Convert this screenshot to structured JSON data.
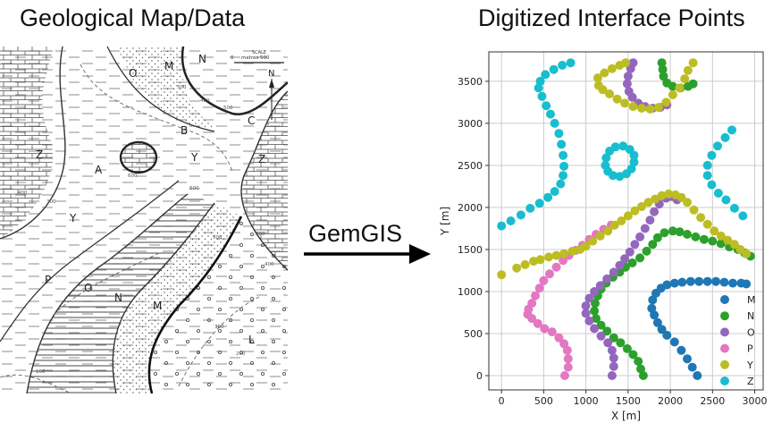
{
  "left_title": "Geological Map/Data",
  "right_title": "Digitized Interface Points",
  "arrow_label": "GemGIS",
  "map": {
    "scale_label_top": "SCALE",
    "scale_label_bottom": "metres 500",
    "scale_zero": "0",
    "north": "N",
    "unit_labels": [
      "M",
      "N",
      "O",
      "Y",
      "Z",
      "Z",
      "A",
      "B",
      "C",
      "Y",
      "P",
      "O",
      "N",
      "M",
      "L"
    ],
    "contour_labels": [
      "300",
      "400",
      "500",
      "600",
      "400",
      "300",
      "200",
      "600",
      "500",
      "400",
      "300",
      "200",
      "100"
    ]
  },
  "chart_data": {
    "type": "scatter",
    "title": "Digitized Interface Points",
    "xlabel": "X [m]",
    "ylabel": "Y [m]",
    "xlim": [
      -150,
      3100
    ],
    "ylim": [
      -170,
      3850
    ],
    "xticks": [
      0,
      500,
      1000,
      1500,
      2000,
      2500,
      3000
    ],
    "yticks": [
      0,
      500,
      1000,
      1500,
      2000,
      2500,
      3000,
      3500
    ],
    "grid": true,
    "legend_position": "bottom-right",
    "series": [
      {
        "name": "M",
        "color": "#1f77b4",
        "points": [
          [
            2320,
            0
          ],
          [
            2260,
            100
          ],
          [
            2200,
            200
          ],
          [
            2130,
            300
          ],
          [
            2050,
            400
          ],
          [
            1960,
            480
          ],
          [
            1900,
            550
          ],
          [
            1850,
            630
          ],
          [
            1810,
            720
          ],
          [
            1780,
            800
          ],
          [
            1790,
            900
          ],
          [
            1830,
            980
          ],
          [
            1890,
            1040
          ],
          [
            1960,
            1080
          ],
          [
            2050,
            1100
          ],
          [
            2140,
            1110
          ],
          [
            2240,
            1120
          ],
          [
            2340,
            1120
          ],
          [
            2440,
            1120
          ],
          [
            2540,
            1120
          ],
          [
            2640,
            1110
          ],
          [
            2740,
            1100
          ],
          [
            2840,
            1100
          ],
          [
            2900,
            1090
          ]
        ]
      },
      {
        "name": "N",
        "color": "#2ca02c",
        "points": [
          [
            1680,
            0
          ],
          [
            1650,
            80
          ],
          [
            1620,
            170
          ],
          [
            1560,
            250
          ],
          [
            1490,
            320
          ],
          [
            1410,
            390
          ],
          [
            1330,
            450
          ],
          [
            1250,
            530
          ],
          [
            1180,
            600
          ],
          [
            1120,
            680
          ],
          [
            1100,
            770
          ],
          [
            1110,
            860
          ],
          [
            1140,
            950
          ],
          [
            1180,
            1030
          ],
          [
            1240,
            1100
          ],
          [
            1320,
            1170
          ],
          [
            1400,
            1230
          ],
          [
            1470,
            1290
          ],
          [
            1550,
            1340
          ],
          [
            1640,
            1400
          ],
          [
            1720,
            1480
          ],
          [
            1790,
            1560
          ],
          [
            1850,
            1640
          ],
          [
            1930,
            1700
          ],
          [
            2030,
            1720
          ],
          [
            2110,
            1710
          ],
          [
            2200,
            1680
          ],
          [
            2300,
            1650
          ],
          [
            2400,
            1620
          ],
          [
            2500,
            1600
          ],
          [
            2600,
            1570
          ],
          [
            2700,
            1530
          ],
          [
            2800,
            1500
          ],
          [
            2880,
            1460
          ],
          [
            2950,
            1420
          ],
          [
            1900,
            3720
          ],
          [
            1910,
            3640
          ],
          [
            1920,
            3560
          ],
          [
            1960,
            3480
          ],
          [
            2030,
            3440
          ],
          [
            2120,
            3420
          ],
          [
            2210,
            3440
          ],
          [
            2270,
            3470
          ]
        ]
      },
      {
        "name": "O",
        "color": "#9467bd",
        "points": [
          [
            1310,
            0
          ],
          [
            1330,
            110
          ],
          [
            1330,
            210
          ],
          [
            1310,
            300
          ],
          [
            1260,
            390
          ],
          [
            1180,
            470
          ],
          [
            1100,
            560
          ],
          [
            1040,
            650
          ],
          [
            1000,
            740
          ],
          [
            1000,
            830
          ],
          [
            1040,
            920
          ],
          [
            1100,
            1000
          ],
          [
            1170,
            1070
          ],
          [
            1250,
            1150
          ],
          [
            1330,
            1230
          ],
          [
            1400,
            1310
          ],
          [
            1460,
            1390
          ],
          [
            1520,
            1470
          ],
          [
            1580,
            1560
          ],
          [
            1640,
            1650
          ],
          [
            1700,
            1750
          ],
          [
            1760,
            1850
          ],
          [
            1810,
            1950
          ],
          [
            1870,
            2040
          ],
          [
            1950,
            2110
          ],
          [
            2020,
            2130
          ],
          [
            2080,
            2090
          ],
          [
            1560,
            3720
          ],
          [
            1530,
            3650
          ],
          [
            1500,
            3560
          ],
          [
            1490,
            3470
          ],
          [
            1510,
            3380
          ],
          [
            1550,
            3310
          ],
          [
            1620,
            3240
          ],
          [
            1700,
            3200
          ],
          [
            1790,
            3180
          ],
          [
            1880,
            3190
          ],
          [
            1960,
            3220
          ]
        ]
      },
      {
        "name": "P",
        "color": "#e377c2",
        "points": [
          [
            750,
            0
          ],
          [
            790,
            100
          ],
          [
            790,
            200
          ],
          [
            780,
            300
          ],
          [
            740,
            380
          ],
          [
            680,
            450
          ],
          [
            600,
            520
          ],
          [
            510,
            560
          ],
          [
            430,
            620
          ],
          [
            360,
            680
          ],
          [
            310,
            730
          ],
          [
            320,
            790
          ],
          [
            360,
            860
          ],
          [
            400,
            950
          ],
          [
            450,
            1040
          ],
          [
            500,
            1130
          ],
          [
            570,
            1210
          ],
          [
            650,
            1290
          ],
          [
            730,
            1370
          ],
          [
            800,
            1430
          ],
          [
            880,
            1490
          ],
          [
            960,
            1550
          ],
          [
            1040,
            1620
          ],
          [
            1120,
            1680
          ],
          [
            1210,
            1740
          ],
          [
            1300,
            1790
          ]
        ]
      },
      {
        "name": "Y",
        "color": "#bcbd22",
        "points": [
          [
            0,
            1200
          ],
          [
            180,
            1280
          ],
          [
            280,
            1320
          ],
          [
            380,
            1360
          ],
          [
            460,
            1380
          ],
          [
            560,
            1410
          ],
          [
            650,
            1430
          ],
          [
            740,
            1450
          ],
          [
            840,
            1480
          ],
          [
            930,
            1500
          ],
          [
            1000,
            1540
          ],
          [
            1080,
            1600
          ],
          [
            1170,
            1660
          ],
          [
            1260,
            1720
          ],
          [
            1340,
            1790
          ],
          [
            1420,
            1840
          ],
          [
            1500,
            1900
          ],
          [
            1580,
            1960
          ],
          [
            1660,
            2010
          ],
          [
            1740,
            2060
          ],
          [
            1820,
            2100
          ],
          [
            1900,
            2140
          ],
          [
            1980,
            2160
          ],
          [
            2060,
            2150
          ],
          [
            2130,
            2120
          ],
          [
            2200,
            2060
          ],
          [
            2280,
            1970
          ],
          [
            2360,
            1880
          ],
          [
            2440,
            1800
          ],
          [
            2520,
            1720
          ],
          [
            2600,
            1660
          ],
          [
            2680,
            1610
          ],
          [
            2760,
            1560
          ],
          [
            2830,
            1500
          ],
          [
            2900,
            1450
          ],
          [
            1470,
            3720
          ],
          [
            1400,
            3690
          ],
          [
            1310,
            3650
          ],
          [
            1220,
            3600
          ],
          [
            1140,
            3540
          ],
          [
            1150,
            3450
          ],
          [
            1200,
            3400
          ],
          [
            1280,
            3350
          ],
          [
            1370,
            3290
          ],
          [
            1460,
            3240
          ],
          [
            1560,
            3200
          ],
          [
            1660,
            3180
          ],
          [
            1760,
            3170
          ],
          [
            1860,
            3190
          ],
          [
            1950,
            3250
          ],
          [
            2030,
            3340
          ],
          [
            2110,
            3420
          ],
          [
            2170,
            3530
          ],
          [
            2210,
            3630
          ],
          [
            2270,
            3720
          ]
        ]
      },
      {
        "name": "Z",
        "color": "#17becf",
        "points": [
          [
            820,
            3720
          ],
          [
            720,
            3690
          ],
          [
            620,
            3640
          ],
          [
            520,
            3580
          ],
          [
            460,
            3500
          ],
          [
            440,
            3420
          ],
          [
            480,
            3320
          ],
          [
            530,
            3210
          ],
          [
            580,
            3110
          ],
          [
            630,
            3000
          ],
          [
            680,
            2880
          ],
          [
            710,
            2750
          ],
          [
            730,
            2620
          ],
          [
            740,
            2490
          ],
          [
            730,
            2380
          ],
          [
            700,
            2280
          ],
          [
            630,
            2190
          ],
          [
            550,
            2120
          ],
          [
            450,
            2050
          ],
          [
            340,
            1990
          ],
          [
            230,
            1910
          ],
          [
            110,
            1840
          ],
          [
            0,
            1780
          ],
          [
            2730,
            2920
          ],
          [
            2650,
            2830
          ],
          [
            2560,
            2730
          ],
          [
            2490,
            2620
          ],
          [
            2440,
            2500
          ],
          [
            2440,
            2380
          ],
          [
            2490,
            2270
          ],
          [
            2570,
            2170
          ],
          [
            2660,
            2090
          ],
          [
            2760,
            1990
          ],
          [
            2860,
            1900
          ],
          [
            1570,
            2620
          ],
          [
            1520,
            2690
          ],
          [
            1440,
            2730
          ],
          [
            1350,
            2720
          ],
          [
            1280,
            2670
          ],
          [
            1240,
            2590
          ],
          [
            1230,
            2500
          ],
          [
            1260,
            2430
          ],
          [
            1320,
            2380
          ],
          [
            1400,
            2370
          ],
          [
            1480,
            2400
          ],
          [
            1540,
            2460
          ],
          [
            1570,
            2540
          ]
        ]
      }
    ]
  }
}
